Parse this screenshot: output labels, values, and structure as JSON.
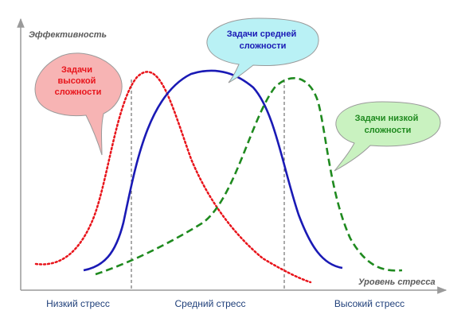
{
  "y_axis_title": "Эффективность",
  "x_axis_title": "Уровень стресса",
  "zones": {
    "low": "Низкий стресс",
    "medium": "Средний стресс",
    "high": "Высокий стресс"
  },
  "bubbles": {
    "high_complexity": {
      "lines": [
        "Задачи",
        "высокой",
        "сложности"
      ],
      "text_color": "#e8141b",
      "fill": "#f7b4b4"
    },
    "medium_complexity": {
      "lines": [
        "Задачи средней",
        "сложности"
      ],
      "text_color": "#1a1ab5",
      "fill": "#b9f1f5"
    },
    "low_complexity": {
      "lines": [
        "Задачи низкой",
        "сложности"
      ],
      "text_color": "#1f8a1f",
      "fill": "#c9f2c0"
    }
  },
  "curves": {
    "high_complexity": {
      "style": "dotted",
      "color": "#e8141b"
    },
    "medium_complexity": {
      "style": "solid",
      "color": "#1a1ab5"
    },
    "low_complexity": {
      "style": "dashed",
      "color": "#1f8a1f"
    }
  }
}
